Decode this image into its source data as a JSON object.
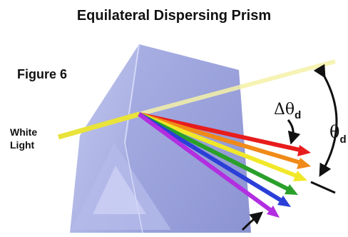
{
  "title": "Equilateral Dispersing Prism",
  "figure_label": "Figure 6",
  "beam_label": {
    "line1": "White",
    "line2": "Light"
  },
  "deviation_label": {
    "symbol": "Δθ",
    "subscript": "d"
  },
  "angle_label": {
    "symbol": "θ",
    "subscript": "d"
  }
}
